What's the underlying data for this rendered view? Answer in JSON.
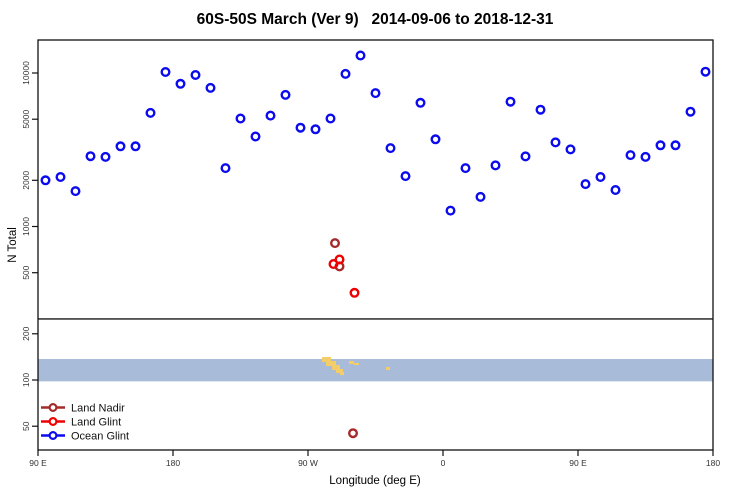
{
  "chart_data": {
    "type": "scatter",
    "title": "60S-50S March (Ver 9)   2014-09-06 to 2018-12-31",
    "xlabel": "Longitude (deg E)",
    "ylabel": "N Total",
    "x_axis": {
      "unit": "deg E",
      "range_deg": [
        90,
        540
      ],
      "ticks": [
        {
          "lon": 90,
          "label": "90 E"
        },
        {
          "lon": 180,
          "label": "180"
        },
        {
          "lon": 270,
          "label": "90 W"
        },
        {
          "lon": 360,
          "label": "0"
        },
        {
          "lon": 450,
          "label": "90 E"
        },
        {
          "lon": 540,
          "label": "180"
        }
      ]
    },
    "y_axis": {
      "scale": "log",
      "range": [
        35,
        16000
      ],
      "ticks": [
        50,
        100,
        200,
        500,
        1000,
        2000,
        5000,
        10000
      ]
    },
    "threshold_line_n": 250,
    "series": [
      {
        "name": "Land Nadir",
        "color": "#a52a2a",
        "points": [
          [
            288,
            780
          ],
          [
            291,
            550
          ],
          [
            300,
            45
          ]
        ]
      },
      {
        "name": "Land Glint",
        "color": "#ee0000",
        "points": [
          [
            287,
            570
          ],
          [
            291,
            610
          ],
          [
            301,
            370
          ]
        ]
      },
      {
        "name": "Ocean Glint",
        "color": "#0b0bee",
        "points": [
          [
            95,
            2000
          ],
          [
            105,
            2100
          ],
          [
            115,
            1700
          ],
          [
            125,
            2870
          ],
          [
            135,
            2840
          ],
          [
            145,
            3330
          ],
          [
            155,
            3330
          ],
          [
            165,
            5500
          ],
          [
            175,
            10150
          ],
          [
            185,
            8500
          ],
          [
            195,
            9700
          ],
          [
            205,
            8000
          ],
          [
            215,
            2400
          ],
          [
            225,
            5050
          ],
          [
            235,
            3860
          ],
          [
            245,
            5280
          ],
          [
            255,
            7200
          ],
          [
            265,
            4400
          ],
          [
            275,
            4300
          ],
          [
            285,
            5050
          ],
          [
            295,
            9860
          ],
          [
            305,
            13000
          ],
          [
            315,
            7400
          ],
          [
            325,
            3240
          ],
          [
            335,
            2130
          ],
          [
            345,
            6400
          ],
          [
            355,
            3700
          ],
          [
            365,
            1270
          ],
          [
            375,
            2400
          ],
          [
            385,
            1560
          ],
          [
            395,
            2500
          ],
          [
            405,
            6500
          ],
          [
            415,
            2860
          ],
          [
            425,
            5770
          ],
          [
            435,
            3530
          ],
          [
            445,
            3180
          ],
          [
            455,
            1890
          ],
          [
            465,
            2100
          ],
          [
            475,
            1730
          ],
          [
            485,
            2920
          ],
          [
            495,
            2840
          ],
          [
            505,
            3380
          ],
          [
            515,
            3380
          ],
          [
            525,
            5600
          ],
          [
            535,
            10200
          ]
        ]
      }
    ],
    "map_band": {
      "description": "60S-50S latitude strip: ocean in light blue, land in yellow",
      "ocean_color": "#a8bcd9",
      "land_color": "#f2cd69",
      "n_range": [
        98,
        137
      ],
      "land_patches": [
        [
          322,
          357,
          9,
          5
        ],
        [
          326,
          361,
          10,
          5
        ],
        [
          332,
          365,
          8,
          5
        ],
        [
          336,
          369,
          7,
          4
        ],
        [
          340,
          372,
          4,
          3
        ],
        [
          349,
          361,
          5,
          3
        ],
        [
          354,
          363,
          5,
          2
        ],
        [
          386,
          367,
          4,
          3
        ]
      ]
    },
    "legend": {
      "position": "bottom-left",
      "entries": [
        {
          "label": "Land Nadir",
          "color": "#a52a2a"
        },
        {
          "label": "Land Glint",
          "color": "#ee0000"
        },
        {
          "label": "Ocean Glint",
          "color": "#0b0bee"
        }
      ]
    },
    "layout_hints": {
      "grid": false,
      "marker": "open-circle"
    }
  }
}
